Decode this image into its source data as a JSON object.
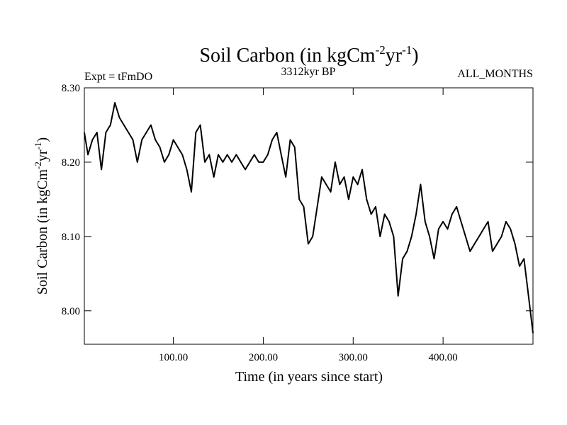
{
  "chart_data": {
    "type": "line",
    "title_main": "Soil Carbon (in kgCm",
    "title_sup1": "-2",
    "title_mid": "yr",
    "title_sup2": "-1",
    "title_end": ")",
    "subtitle_left": "Expt = tFmDO",
    "subtitle_center": "3312kyr BP",
    "subtitle_right": "ALL_MONTHS",
    "xlabel": "Time (in years since start)",
    "ylabel_main": "Soil Carbon (in kgCm",
    "ylabel_sup1": "-2",
    "ylabel_mid": "yr",
    "ylabel_sup2": "-1",
    "ylabel_end": ")",
    "xlim": [
      1,
      500
    ],
    "ylim": [
      7.955,
      8.3
    ],
    "x_ticks": [
      {
        "value": 100,
        "label": "100.00"
      },
      {
        "value": 200,
        "label": "200.00"
      },
      {
        "value": 300,
        "label": "300.00"
      },
      {
        "value": 400,
        "label": "400.00"
      }
    ],
    "y_ticks": [
      {
        "value": 8.0,
        "label": "8.00"
      },
      {
        "value": 8.1,
        "label": "8.10"
      },
      {
        "value": 8.2,
        "label": "8.20"
      },
      {
        "value": 8.3,
        "label": "8.30"
      }
    ],
    "line_color": "#000000",
    "grid": false,
    "series": [
      {
        "x": [
          1,
          5,
          10,
          15,
          20,
          25,
          30,
          35,
          40,
          45,
          50,
          55,
          60,
          65,
          70,
          75,
          80,
          85,
          90,
          95,
          100,
          105,
          110,
          115,
          120,
          125,
          130,
          135,
          140,
          145,
          150,
          155,
          160,
          165,
          170,
          175,
          180,
          185,
          190,
          195,
          200,
          205,
          210,
          215,
          220,
          225,
          230,
          235,
          240,
          245,
          250,
          255,
          260,
          265,
          270,
          275,
          280,
          285,
          290,
          295,
          300,
          305,
          310,
          315,
          320,
          325,
          330,
          335,
          340,
          345,
          350,
          355,
          360,
          365,
          370,
          375,
          380,
          385,
          390,
          395,
          400,
          405,
          410,
          415,
          420,
          425,
          430,
          435,
          440,
          445,
          450,
          455,
          460,
          465,
          470,
          475,
          480,
          485,
          490,
          495,
          500
        ],
        "values": [
          8.24,
          8.21,
          8.23,
          8.24,
          8.19,
          8.24,
          8.25,
          8.28,
          8.26,
          8.25,
          8.24,
          8.23,
          8.2,
          8.23,
          8.24,
          8.25,
          8.23,
          8.22,
          8.2,
          8.21,
          8.23,
          8.22,
          8.21,
          8.19,
          8.16,
          8.24,
          8.25,
          8.2,
          8.21,
          8.18,
          8.21,
          8.2,
          8.21,
          8.2,
          8.21,
          8.2,
          8.19,
          8.2,
          8.21,
          8.2,
          8.2,
          8.21,
          8.23,
          8.24,
          8.21,
          8.18,
          8.23,
          8.22,
          8.15,
          8.14,
          8.09,
          8.1,
          8.14,
          8.18,
          8.17,
          8.16,
          8.2,
          8.17,
          8.18,
          8.15,
          8.18,
          8.17,
          8.19,
          8.15,
          8.13,
          8.14,
          8.1,
          8.13,
          8.12,
          8.1,
          8.02,
          8.07,
          8.08,
          8.1,
          8.13,
          8.17,
          8.12,
          8.1,
          8.07,
          8.11,
          8.12,
          8.11,
          8.13,
          8.14,
          8.12,
          8.1,
          8.08,
          8.09,
          8.1,
          8.11,
          8.12,
          8.08,
          8.09,
          8.1,
          8.12,
          8.11,
          8.09,
          8.06,
          8.07,
          8.02,
          7.97
        ]
      }
    ]
  }
}
